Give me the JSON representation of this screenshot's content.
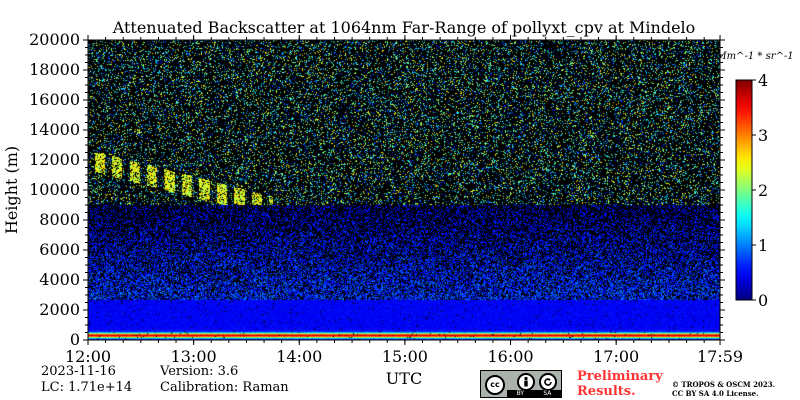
{
  "chart_data": {
    "type": "heatmap",
    "title": "Attenuated Backscatter at 1064nm Far-Range of pollyxt_cpv at Mindelo",
    "xlabel": "UTC",
    "ylabel": "Height (m)",
    "x_ticks": [
      "12:00",
      "13:00",
      "14:00",
      "15:00",
      "16:00",
      "17:00",
      "17:59"
    ],
    "x_range_hours": [
      12.0,
      17.983
    ],
    "y_ticks": [
      0,
      2000,
      4000,
      6000,
      8000,
      10000,
      12000,
      14000,
      16000,
      18000,
      20000
    ],
    "ylim": [
      0,
      20000
    ],
    "colorbar": {
      "label": "Mm^-1 * sr^-1",
      "ticks": [
        0,
        1,
        2,
        3,
        4
      ],
      "range": [
        0,
        4
      ],
      "colormap": "jet"
    },
    "features": [
      {
        "name": "boundary layer peak",
        "height_m": 300,
        "value": 3.2
      },
      {
        "name": "aerosol layer top",
        "height_m": 2700,
        "value": 0.6
      },
      {
        "name": "cirrus",
        "time_start": "12:00",
        "time_end": "13:45",
        "height_min_m": 9000,
        "height_max_m": 12500,
        "value": 2.0
      }
    ]
  },
  "date": "2023-11-16",
  "lc": "LC: 1.71e+14",
  "version": "Version: 3.6",
  "calibration": "Calibration: Raman",
  "preliminary": [
    "Preliminary",
    "Results."
  ],
  "copyright": [
    "© TROPOS & OSCM 2023.",
    "CC BY SA 4.0 License."
  ],
  "license_badge": {
    "icons": [
      "cc",
      "by",
      "sa"
    ],
    "labels": [
      "BY",
      "SA"
    ]
  },
  "colors": {
    "background": "#000000",
    "preliminary": "#ff3333",
    "badge": "#aab2ab"
  }
}
